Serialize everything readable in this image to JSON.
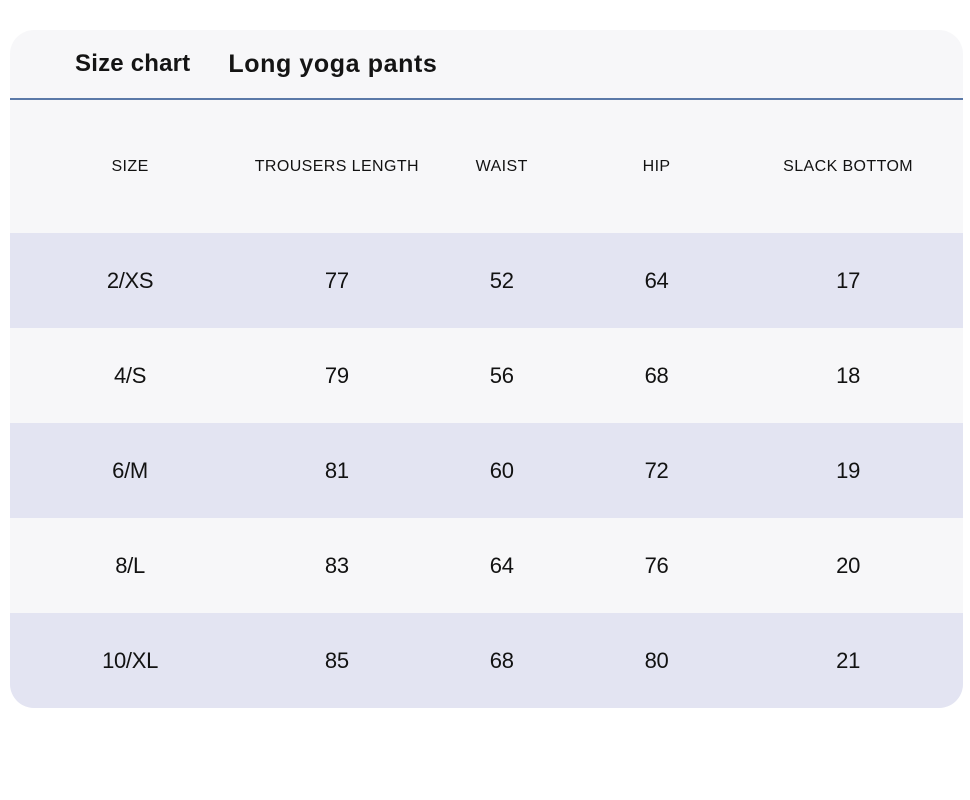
{
  "title": {
    "chart_label": "Size chart",
    "product_name": "Long yoga pants"
  },
  "table": {
    "headers": [
      "SIZE",
      "TROUSERS LENGTH",
      "WAIST",
      "HIP",
      "SLACK BOTTOM"
    ],
    "rows": [
      [
        "2/XS",
        "77",
        "52",
        "64",
        "17"
      ],
      [
        "4/S",
        "79",
        "56",
        "68",
        "18"
      ],
      [
        "6/M",
        "81",
        "60",
        "72",
        "19"
      ],
      [
        "8/L",
        "83",
        "64",
        "76",
        "20"
      ],
      [
        "10/XL",
        "85",
        "68",
        "80",
        "21"
      ]
    ]
  },
  "colors": {
    "page_background": "#ffffff",
    "card_background": "#f7f7f9",
    "alt_row_background": "#e3e4f2",
    "divider_line": "#5b79a8",
    "text": "#141414"
  }
}
